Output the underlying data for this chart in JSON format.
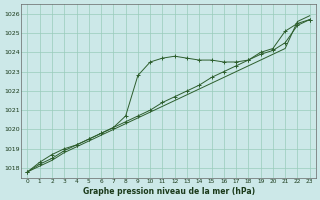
{
  "xlabel": "Graphe pression niveau de la mer (hPa)",
  "ylim": [
    1017.5,
    1026.5
  ],
  "xlim": [
    -0.5,
    23.5
  ],
  "yticks": [
    1018,
    1019,
    1020,
    1021,
    1022,
    1023,
    1024,
    1025,
    1026
  ],
  "xticks": [
    0,
    1,
    2,
    3,
    4,
    5,
    6,
    7,
    8,
    9,
    10,
    11,
    12,
    13,
    14,
    15,
    16,
    17,
    18,
    19,
    20,
    21,
    22,
    23
  ],
  "bg_color": "#cce8e8",
  "grid_color": "#99ccbb",
  "line_color": "#2d5e2d",
  "line1_with_markers": [
    1017.8,
    1018.3,
    1018.7,
    1019.0,
    1019.2,
    1019.5,
    1019.8,
    1020.1,
    1020.7,
    1022.8,
    1023.5,
    1023.7,
    1023.8,
    1023.7,
    1023.6,
    1023.6,
    1023.5,
    1023.5,
    1023.6,
    1024.0,
    1024.2,
    1025.1,
    1025.5,
    1025.7
  ],
  "line2_with_markers": [
    1017.8,
    1018.2,
    1018.5,
    1018.9,
    1019.2,
    1019.5,
    1019.8,
    1020.1,
    1020.4,
    1020.7,
    1021.0,
    1021.4,
    1021.7,
    1022.0,
    1022.3,
    1022.7,
    1023.0,
    1023.3,
    1023.6,
    1023.9,
    1024.1,
    1024.5,
    1025.4,
    1025.7
  ],
  "line3_plain": [
    1017.8,
    1018.1,
    1018.4,
    1018.8,
    1019.1,
    1019.4,
    1019.7,
    1020.0,
    1020.3,
    1020.6,
    1020.9,
    1021.2,
    1021.5,
    1021.8,
    1022.1,
    1022.4,
    1022.7,
    1023.0,
    1023.3,
    1023.6,
    1023.9,
    1024.2,
    1025.6,
    1025.9
  ]
}
